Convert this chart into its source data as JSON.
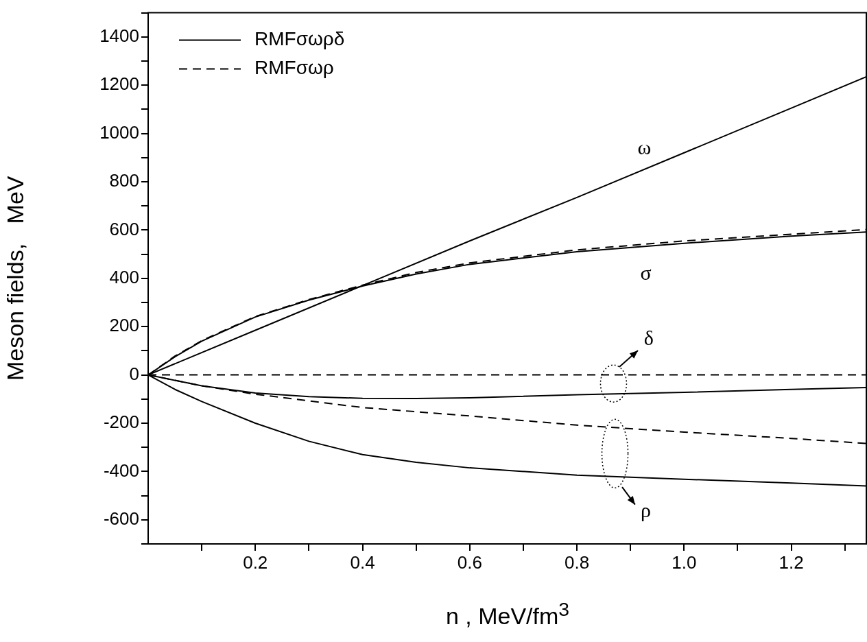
{
  "chart_data": {
    "type": "line",
    "xlabel": "n ,  MeV/fm$^{3}$",
    "ylabel": "Meson fields,   MeV",
    "xlim": [
      0,
      1.34
    ],
    "xticks": [
      {
        "value": 0.1,
        "label": null
      },
      0.2,
      {
        "value": 0.3,
        "label": null
      },
      0.4,
      {
        "value": 0.5,
        "label": null
      },
      0.6,
      {
        "value": 0.7,
        "label": null
      },
      0.8,
      {
        "value": 0.9,
        "label": null
      },
      {
        "value": 1.0,
        "label": "1.0"
      },
      {
        "value": 1.1,
        "label": null
      },
      1.2,
      {
        "value": 1.3,
        "label": null
      }
    ],
    "ylim": [
      -700,
      1500
    ],
    "yticks": [
      {
        "value": -700,
        "label": null
      },
      -600,
      {
        "value": -500,
        "label": null
      },
      -400,
      {
        "value": -300,
        "label": null
      },
      -200,
      {
        "value": -100,
        "label": null
      },
      0,
      {
        "value": 100,
        "label": null
      },
      200,
      {
        "value": 300,
        "label": null
      },
      400,
      {
        "value": 500,
        "label": null
      },
      600,
      {
        "value": 700,
        "label": null
      },
      800,
      {
        "value": 900,
        "label": null
      },
      1000,
      {
        "value": 1100,
        "label": null
      },
      1200,
      {
        "value": 1300,
        "label": null
      },
      1400,
      {
        "value": 1500,
        "label": null
      }
    ],
    "grid": false,
    "legend": "top left",
    "marker": "none",
    "series": [
      {
        "name": "RMFσωρδ",
        "color": "#000000",
        "line_style": "solid",
        "x": [
          0,
          0.2,
          0.4,
          0.6,
          0.8,
          1.0,
          1.2,
          1.34
        ],
        "values": [
          0,
          185,
          370,
          555,
          735,
          920,
          1105,
          1235
        ]
      },
      {
        "name": "RMFσωρ",
        "color": "#000000",
        "line_style": "dashed",
        "x": [
          0,
          0.05,
          0.1,
          0.2,
          0.3,
          0.4,
          0.5,
          0.6,
          0.8,
          1.0,
          1.2,
          1.34
        ],
        "values": [
          0,
          78,
          142,
          242,
          312,
          372,
          424,
          464,
          518,
          555,
          583,
          602
        ]
      },
      {
        "color": "#000000",
        "line_style": "solid",
        "x": [
          0,
          0.05,
          0.1,
          0.2,
          0.3,
          0.4,
          0.5,
          0.6,
          0.8,
          1.0,
          1.2,
          1.34
        ],
        "values": [
          0,
          75,
          140,
          240,
          310,
          368,
          418,
          458,
          510,
          545,
          575,
          592
        ]
      },
      {
        "color": "#000000",
        "line_style": "dashed",
        "x": [
          0,
          1.34
        ],
        "values": [
          0,
          0
        ]
      },
      {
        "color": "#000000",
        "line_style": "solid",
        "x": [
          0,
          0.1,
          0.2,
          0.3,
          0.4,
          0.5,
          0.6,
          0.8,
          1.0,
          1.2,
          1.34
        ],
        "values": [
          0,
          -45,
          -75,
          -90,
          -97,
          -98,
          -95,
          -82,
          -72,
          -60,
          -52
        ]
      },
      {
        "color": "#000000",
        "line_style": "dashed",
        "x": [
          0,
          0.1,
          0.2,
          0.4,
          0.6,
          0.8,
          1.0,
          1.2,
          1.34
        ],
        "values": [
          0,
          -45,
          -80,
          -135,
          -170,
          -208,
          -237,
          -263,
          -284
        ]
      },
      {
        "color": "#000000",
        "line_style": "solid",
        "x": [
          0,
          0.05,
          0.1,
          0.2,
          0.3,
          0.4,
          0.5,
          0.6,
          0.8,
          1.0,
          1.2,
          1.34
        ],
        "values": [
          0,
          -60,
          -110,
          -200,
          -275,
          -330,
          -362,
          -385,
          -415,
          -432,
          -448,
          -460
        ]
      }
    ],
    "annotations": [
      "ω",
      "σ",
      "δ",
      "ρ"
    ]
  }
}
